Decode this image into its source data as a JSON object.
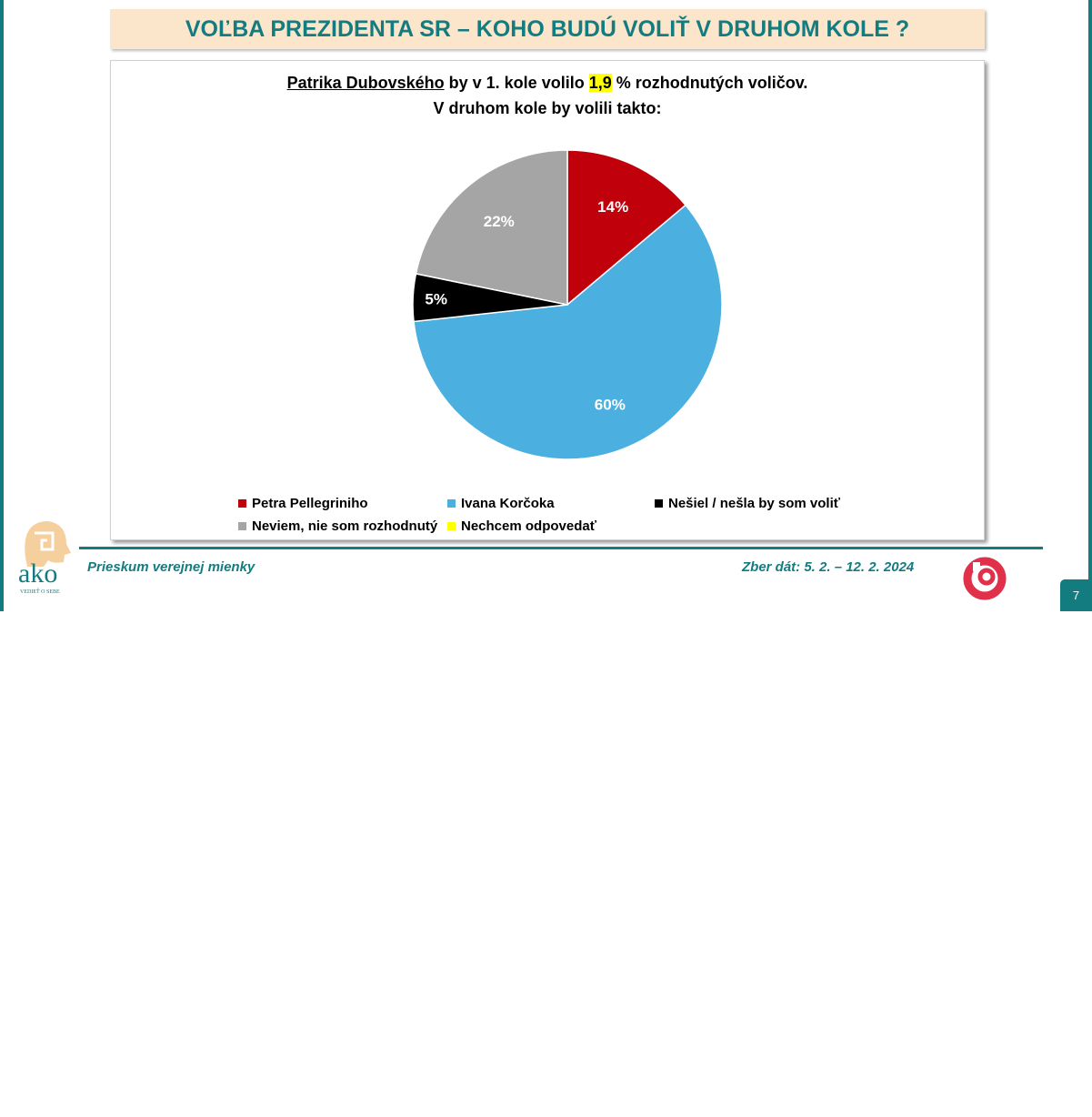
{
  "header": {
    "title": "VOĽBA PREZIDENTA SR – KOHO BUDÚ VOLIŤ V DRUHOM KOLE ?"
  },
  "chart_data": {
    "type": "pie",
    "title_line1": {
      "name": "Patrika Dubovského",
      "pre": " by v 1. kole volilo ",
      "value": "1,9",
      "post": " % rozhodnutých voličov."
    },
    "title_line2": "V druhom kole by volili takto:",
    "slices": [
      {
        "label": "Petra Pellegriniho",
        "value": 14,
        "display": "14%",
        "color": "#c0000b"
      },
      {
        "label": "Ivana Korčoka",
        "value": 60,
        "display": "60%",
        "color": "#4bafe0"
      },
      {
        "label": "Nešiel / nešla by som voliť",
        "value": 5,
        "display": "5%",
        "color": "#000000"
      },
      {
        "label": "Neviem, nie som rozhodnutý",
        "value": 22,
        "display": "22%",
        "color": "#a5a5a5"
      },
      {
        "label": "Nechcem odpovedať",
        "value": 0,
        "display": "",
        "color": "#ffff00"
      }
    ],
    "legend_position": "bottom"
  },
  "footer": {
    "left": "Prieskum verejnej mienky",
    "right": "Zber dát: 5. 2. – 12. 2. 2024",
    "page": "7",
    "logo_text": "ako",
    "logo_tagline": "VEDIEŤ O SEBE"
  }
}
